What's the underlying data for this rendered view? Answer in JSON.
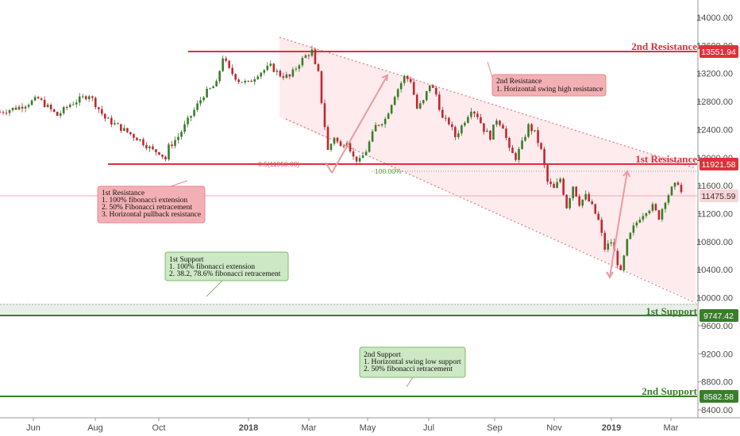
{
  "chart_data": {
    "type": "candlestick",
    "y_axis": {
      "range": [
        8320,
        14250
      ],
      "ticks": [
        "14000.00",
        "13600.00",
        "13200.00",
        "12800.00",
        "12400.00",
        "12000.00",
        "11600.00",
        "11200.00",
        "10800.00",
        "10400.00",
        "10000.00",
        "9600.00",
        "9200.00",
        "8800.00",
        "8400.00"
      ],
      "tick_values": [
        14000,
        13600,
        13200,
        12800,
        12400,
        12000,
        11600,
        11200,
        10800,
        10400,
        10000,
        9600,
        9200,
        8800,
        8400
      ]
    },
    "x_axis": {
      "labels": [
        {
          "text": "Jun",
          "bold": false
        },
        {
          "text": "Aug",
          "bold": false
        },
        {
          "text": "Oct",
          "bold": false
        },
        {
          "text": "2018",
          "bold": true
        },
        {
          "text": "Mar",
          "bold": false
        },
        {
          "text": "May",
          "bold": false
        },
        {
          "text": "Jul",
          "bold": false
        },
        {
          "text": "Sep",
          "bold": false
        },
        {
          "text": "Nov",
          "bold": false
        },
        {
          "text": "2019",
          "bold": true
        },
        {
          "text": "Mar",
          "bold": false
        }
      ]
    },
    "price_path": [
      [
        0,
        12650
      ],
      [
        6,
        12720
      ],
      [
        12,
        12840
      ],
      [
        18,
        12600
      ],
      [
        22,
        12760
      ],
      [
        28,
        12900
      ],
      [
        33,
        12560
      ],
      [
        38,
        12420
      ],
      [
        44,
        12250
      ],
      [
        48,
        12100
      ],
      [
        50,
        12080
      ],
      [
        52,
        11980
      ],
      [
        53,
        12150
      ],
      [
        56,
        12300
      ],
      [
        60,
        12600
      ],
      [
        64,
        12900
      ],
      [
        68,
        13050
      ],
      [
        70,
        13440
      ],
      [
        72,
        13250
      ],
      [
        75,
        13100
      ],
      [
        78,
        13060
      ],
      [
        81,
        13200
      ],
      [
        85,
        13300
      ],
      [
        88,
        13180
      ],
      [
        91,
        13150
      ],
      [
        94,
        13350
      ],
      [
        96,
        13450
      ],
      [
        98,
        13520
      ],
      [
        99,
        13300
      ],
      [
        100,
        13200
      ],
      [
        101,
        12800
      ],
      [
        103,
        12100
      ],
      [
        105,
        12300
      ],
      [
        107,
        12150
      ],
      [
        109,
        12250
      ],
      [
        111,
        12000
      ],
      [
        113,
        11950
      ],
      [
        115,
        12100
      ],
      [
        118,
        12450
      ],
      [
        121,
        12550
      ],
      [
        124,
        12900
      ],
      [
        127,
        13150
      ],
      [
        129,
        13100
      ],
      [
        131,
        12700
      ],
      [
        133,
        12800
      ],
      [
        135,
        13050
      ],
      [
        137,
        12900
      ],
      [
        139,
        12550
      ],
      [
        141,
        12500
      ],
      [
        143,
        12300
      ],
      [
        145,
        12450
      ],
      [
        148,
        12700
      ],
      [
        150,
        12600
      ],
      [
        152,
        12400
      ],
      [
        154,
        12300
      ],
      [
        156,
        12550
      ],
      [
        158,
        12450
      ],
      [
        160,
        12100
      ],
      [
        162,
        12000
      ],
      [
        164,
        12200
      ],
      [
        166,
        12450
      ],
      [
        168,
        12350
      ],
      [
        170,
        12100
      ],
      [
        172,
        11650
      ],
      [
        174,
        11550
      ],
      [
        176,
        11700
      ],
      [
        178,
        11300
      ],
      [
        180,
        11600
      ],
      [
        182,
        11350
      ],
      [
        184,
        11450
      ],
      [
        186,
        11300
      ],
      [
        188,
        11100
      ],
      [
        190,
        10700
      ],
      [
        192,
        10800
      ],
      [
        194,
        10500
      ],
      [
        195,
        10350
      ],
      [
        197,
        10800
      ],
      [
        199,
        11000
      ],
      [
        201,
        11150
      ],
      [
        203,
        11250
      ],
      [
        205,
        11300
      ],
      [
        207,
        11150
      ],
      [
        209,
        11400
      ],
      [
        211,
        11550
      ],
      [
        213,
        11650
      ],
      [
        214,
        11500
      ]
    ],
    "levels": [
      {
        "label": "2nd Resistance",
        "value": 13551.94,
        "tag": "13551.94",
        "type": "resistance"
      },
      {
        "label": "1st Resistance",
        "value": 11921.58,
        "tag": "11921.58",
        "type": "resistance"
      },
      {
        "label": "1st Support",
        "value": 9747.42,
        "tag": "9747.42",
        "type": "support"
      },
      {
        "label": "2nd Support",
        "value": 8582.58,
        "tag": "8582.58",
        "type": "support"
      }
    ],
    "current_price": {
      "value": 11475.59,
      "tag": "11475.59"
    },
    "fib_labels": {
      "retracement_50": "0.5(11950.00)",
      "extension_100": "100.00%"
    },
    "notes": {
      "resistance2": [
        "2nd Resistance",
        "1. Horizontal swing high resistance"
      ],
      "resistance1": [
        "1st Resistance",
        "1. 100% fibonacci extension",
        "2. 50% Fibonacci retracement",
        "3. Horizontal pullback resistance"
      ],
      "support1": [
        "1st Support",
        "1. 100% fibonacci extension",
        "2. 38.2, 78.6% fibonacci retracement"
      ],
      "support2": [
        "2nd Support",
        "1. Horizontal swing low support",
        "2. 50% fibonacci retracement"
      ]
    },
    "colors": {
      "resistance": "#e0303a",
      "support": "#3a7d2a",
      "channel_fill": "#fde8ea",
      "candle_up": "#3a7d2a",
      "candle_down": "#c0282f",
      "resistance_note_bg": "#f3b0b4",
      "support_note_bg": "#cde8c4"
    }
  }
}
